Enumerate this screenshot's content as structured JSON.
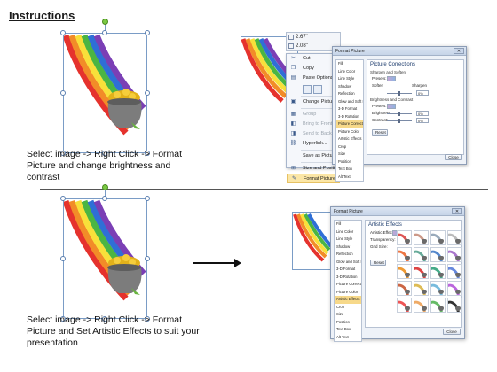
{
  "page": {
    "title": "Instructions"
  },
  "step1": {
    "caption_line1": "Select image -> Right Click -> Format",
    "caption_line2": "Picture and change brightness and contrast"
  },
  "step2": {
    "caption_line1": "Select image -> Right Click -> Format",
    "caption_line2": "Picture and Set Artistic Effects to suit your",
    "caption_line3": "presentation"
  },
  "size_bar": {
    "height": "2.67\"",
    "width": "2.08\""
  },
  "context_menu": {
    "items": [
      {
        "label": "Cut",
        "icon": "scissors-icon",
        "glyph": "✂",
        "disabled": false
      },
      {
        "label": "Copy",
        "icon": "copy-icon",
        "glyph": "❐",
        "disabled": false
      },
      {
        "label": "Paste Options:",
        "icon": "paste-icon",
        "glyph": "📋",
        "disabled": false
      }
    ],
    "items2": [
      {
        "label": "Change Picture...",
        "icon": "change-picture-icon",
        "glyph": "▣",
        "disabled": false
      },
      {
        "label": "Group",
        "icon": "group-icon",
        "glyph": "▦",
        "disabled": true
      },
      {
        "label": "Bring to Front",
        "icon": "bring-front-icon",
        "glyph": "◧",
        "disabled": true
      },
      {
        "label": "Send to Back",
        "icon": "send-back-icon",
        "glyph": "◨",
        "disabled": true
      },
      {
        "label": "Hyperlink...",
        "icon": "hyperlink-icon",
        "glyph": "⛓",
        "disabled": false
      },
      {
        "label": "Save as Picture...",
        "icon": "",
        "glyph": "",
        "disabled": false
      },
      {
        "label": "Size and Position...",
        "icon": "size-position-icon",
        "glyph": "⊞",
        "disabled": false
      },
      {
        "label": "Format Picture...",
        "icon": "format-picture-icon",
        "glyph": "✎",
        "disabled": false
      }
    ]
  },
  "dialog1": {
    "title": "Format Picture",
    "nav": [
      "Fill",
      "Line Color",
      "Line Style",
      "Shadow",
      "Reflection",
      "Glow and Soft Edges",
      "3-D Format",
      "3-D Rotation",
      "Picture Corrections",
      "Picture Color",
      "Artistic Effects",
      "Crop",
      "Size",
      "Position",
      "Text Box",
      "Alt Text"
    ],
    "selected_nav": "Picture Corrections",
    "panel_title": "Picture Corrections",
    "sharpen_section": "Sharpen and Soften",
    "presets_label": "Presets:",
    "soften_label": "Soften",
    "sharpen_label": "Sharpen",
    "sharpen_value": "0%",
    "brightness_section": "Brightness and Contrast",
    "brightness_label": "Brightness:",
    "brightness_value": "0%",
    "contrast_label": "Contrast:",
    "contrast_value": "0%",
    "reset_label": "Reset",
    "close_label": "Close"
  },
  "dialog2": {
    "title": "Format Picture",
    "nav": [
      "Fill",
      "Line Color",
      "Line Style",
      "Shadow",
      "Reflection",
      "Glow and Soft Edges",
      "3-D Format",
      "3-D Rotation",
      "Picture Corrections",
      "Picture Color",
      "Artistic Effects",
      "Crop",
      "Size",
      "Position",
      "Text Box",
      "Alt Text"
    ],
    "selected_nav": "Artistic Effects",
    "panel_title": "Artistic Effects",
    "effect_label": "Artistic Effect:",
    "transparency_label": "Transparency:",
    "grid_size_label": "Grid Size:",
    "reset_label": "Reset",
    "close_label": "Close"
  },
  "colors": {
    "accent": "#f7d98a",
    "selection": "#7a9cc6",
    "rotate_handle": "#7ac943"
  }
}
